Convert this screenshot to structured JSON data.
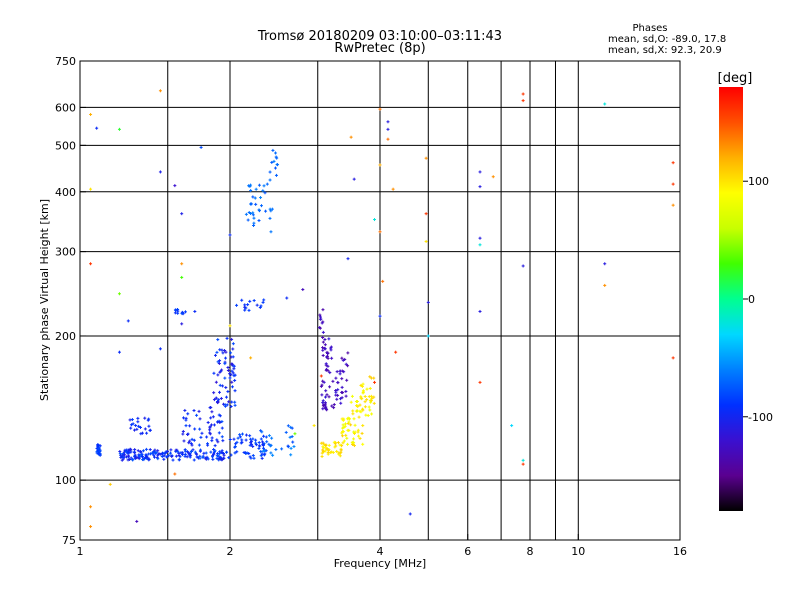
{
  "chart_data": {
    "type": "scatter",
    "title": "Tromsø 20180209 03:10:00–03:11:43",
    "subtitle": "RwPretec (8p)",
    "stats": {
      "heading": "Phases",
      "line1": "mean, sd,O: -89.0, 17.8",
      "line2": "mean, sd,X:  92.3, 20.9"
    },
    "xlabel": "Frequency [MHz]",
    "ylabel": "Stationary phase Virtual Height [km]",
    "x_scale": "log",
    "y_scale": "log",
    "xlim": [
      1,
      16
    ],
    "ylim": [
      75,
      750
    ],
    "xticks": [
      1,
      2,
      4,
      6,
      8,
      10,
      16
    ],
    "xtick_labels": [
      "1",
      "2",
      "4",
      "6",
      "8",
      "10",
      "16"
    ],
    "x_minor_gridlines": [
      1.5,
      3,
      5,
      7,
      9
    ],
    "yticks": [
      75,
      100,
      200,
      300,
      400,
      500,
      600,
      750
    ],
    "ytick_labels": [
      "75",
      "100",
      "200",
      "300",
      "400",
      "500",
      "600",
      "750"
    ],
    "grid": true,
    "colorbar": {
      "label": "[deg]",
      "range": [
        -180,
        180
      ],
      "ticks": [
        100,
        0,
        -100
      ],
      "tick_labels": [
        "100",
        "0",
        "-100"
      ],
      "colors": [
        "#000000",
        "#5a0090",
        "#3a10d0",
        "#0030ff",
        "#0080ff",
        "#00d8ff",
        "#00ff90",
        "#40ff00",
        "#c8ff00",
        "#ffff00",
        "#ffb000",
        "#ff5000",
        "#ff0000"
      ]
    },
    "series": [
      {
        "name": "O",
        "clusters": [
          {
            "f": [
              1.08,
              1.1
            ],
            "h": [
              112,
              119
            ],
            "phase": [
              -95,
              -75
            ],
            "n": 28
          },
          {
            "f": [
              1.2,
              1.95
            ],
            "h": [
              110,
              116
            ],
            "phase": [
              -110,
              -75
            ],
            "n": 190
          },
          {
            "f": [
              1.25,
              1.4
            ],
            "h": [
              125,
              135
            ],
            "phase": [
              -105,
              -85
            ],
            "n": 22
          },
          {
            "f": [
              1.6,
              1.95
            ],
            "h": [
              118,
              142
            ],
            "phase": [
              -110,
              -80
            ],
            "n": 60
          },
          {
            "f": [
              1.85,
              2.05
            ],
            "h": [
              142,
              200
            ],
            "phase": [
              -115,
              -80
            ],
            "n": 70
          },
          {
            "f": [
              1.95,
              2.35
            ],
            "h": [
              111,
              125
            ],
            "phase": [
              -100,
              -75
            ],
            "n": 60
          },
          {
            "f": [
              2.3,
              2.7
            ],
            "h": [
              112,
              130
            ],
            "phase": [
              -85,
              -55
            ],
            "n": 30
          },
          {
            "f": [
              2.15,
              2.45
            ],
            "h": [
              330,
              420
            ],
            "phase": [
              -80,
              -60
            ],
            "n": 35
          },
          {
            "f": [
              2.4,
              2.5
            ],
            "h": [
              420,
              490
            ],
            "phase": [
              -80,
              -60
            ],
            "n": 12
          },
          {
            "f": [
              1.55,
              1.65
            ],
            "h": [
              222,
              228
            ],
            "phase": [
              -95,
              -80
            ],
            "n": 12
          },
          {
            "f": [
              2.05,
              2.35
            ],
            "h": [
              226,
              240
            ],
            "phase": [
              -100,
              -80
            ],
            "n": 15
          },
          {
            "f": [
              3.05,
              3.2
            ],
            "h": [
              140,
              200
            ],
            "phase": [
              -140,
              -115
            ],
            "n": 50
          },
          {
            "f": [
              3.2,
              3.35
            ],
            "h": [
              140,
              170
            ],
            "phase": [
              -135,
              -110
            ],
            "n": 20
          },
          {
            "f": [
              3.35,
              3.45
            ],
            "h": [
              145,
              195
            ],
            "phase": [
              -140,
              -120
            ],
            "n": 15
          },
          {
            "f": [
              3.02,
              3.08
            ],
            "h": [
              200,
              232
            ],
            "phase": [
              -140,
              -120
            ],
            "n": 10
          }
        ]
      },
      {
        "name": "X",
        "clusters": [
          {
            "f": [
              3.05,
              3.35
            ],
            "h": [
              112,
              120
            ],
            "phase": [
              90,
              110
            ],
            "n": 40
          },
          {
            "f": [
              3.35,
              3.7
            ],
            "h": [
              118,
              135
            ],
            "phase": [
              80,
              110
            ],
            "n": 45
          },
          {
            "f": [
              3.5,
              3.85
            ],
            "h": [
              135,
              160
            ],
            "phase": [
              80,
              105
            ],
            "n": 40
          },
          {
            "f": [
              3.8,
              3.9
            ],
            "h": [
              140,
              165
            ],
            "phase": [
              95,
              110
            ],
            "n": 8
          }
        ]
      }
    ],
    "scattered_points": [
      [
        1.05,
        580,
        120
      ],
      [
        1.05,
        405,
        100
      ],
      [
        1.08,
        543,
        -95
      ],
      [
        1.2,
        540,
        20
      ],
      [
        1.45,
        650,
        130
      ],
      [
        1.05,
        283,
        160
      ],
      [
        1.2,
        245,
        40
      ],
      [
        1.25,
        215,
        -95
      ],
      [
        1.45,
        440,
        -105
      ],
      [
        1.55,
        412,
        -120
      ],
      [
        1.6,
        360,
        -105
      ],
      [
        1.6,
        283,
        130
      ],
      [
        1.6,
        265,
        30
      ],
      [
        1.75,
        495,
        -80
      ],
      [
        1.6,
        212,
        -110
      ],
      [
        1.7,
        225,
        -95
      ],
      [
        1.2,
        185,
        -95
      ],
      [
        1.45,
        188,
        -95
      ],
      [
        1.05,
        88,
        130
      ],
      [
        1.05,
        80,
        130
      ],
      [
        1.3,
        82,
        -130
      ],
      [
        1.55,
        103,
        140
      ],
      [
        1.15,
        98,
        110
      ],
      [
        2.0,
        325,
        -95
      ],
      [
        2.8,
        250,
        -130
      ],
      [
        2.6,
        240,
        -95
      ],
      [
        3.5,
        520,
        130
      ],
      [
        3.55,
        425,
        -110
      ],
      [
        3.45,
        290,
        -100
      ],
      [
        4.0,
        595,
        140
      ],
      [
        4.15,
        540,
        -110
      ],
      [
        4.15,
        560,
        -110
      ],
      [
        4.15,
        515,
        140
      ],
      [
        4.0,
        455,
        120
      ],
      [
        3.9,
        350,
        -20
      ],
      [
        4.0,
        330,
        140
      ],
      [
        4.05,
        260,
        140
      ],
      [
        4.0,
        220,
        -95
      ],
      [
        4.25,
        405,
        130
      ],
      [
        4.3,
        185,
        160
      ],
      [
        4.6,
        85,
        -100
      ],
      [
        4.95,
        470,
        130
      ],
      [
        4.95,
        360,
        160
      ],
      [
        4.95,
        315,
        100
      ],
      [
        5.0,
        235,
        -110
      ],
      [
        5.0,
        200,
        -30
      ],
      [
        6.35,
        440,
        -110
      ],
      [
        6.35,
        410,
        -110
      ],
      [
        6.35,
        320,
        -110
      ],
      [
        6.35,
        310,
        -20
      ],
      [
        6.35,
        225,
        -110
      ],
      [
        6.35,
        160,
        160
      ],
      [
        6.75,
        430,
        130
      ],
      [
        7.35,
        130,
        -30
      ],
      [
        7.75,
        640,
        160
      ],
      [
        7.75,
        620,
        160
      ],
      [
        7.75,
        280,
        -110
      ],
      [
        7.75,
        110,
        -20
      ],
      [
        7.75,
        108,
        160
      ],
      [
        11.3,
        610,
        -20
      ],
      [
        11.3,
        283,
        -110
      ],
      [
        11.3,
        255,
        130
      ],
      [
        15.5,
        460,
        160
      ],
      [
        15.5,
        415,
        160
      ],
      [
        15.5,
        375,
        130
      ],
      [
        15.5,
        180,
        160
      ],
      [
        2.7,
        125,
        40
      ],
      [
        2.95,
        130,
        100
      ],
      [
        2.2,
        180,
        120
      ],
      [
        2.0,
        210,
        100
      ],
      [
        3.9,
        160,
        160
      ],
      [
        3.05,
        165,
        160
      ]
    ]
  }
}
